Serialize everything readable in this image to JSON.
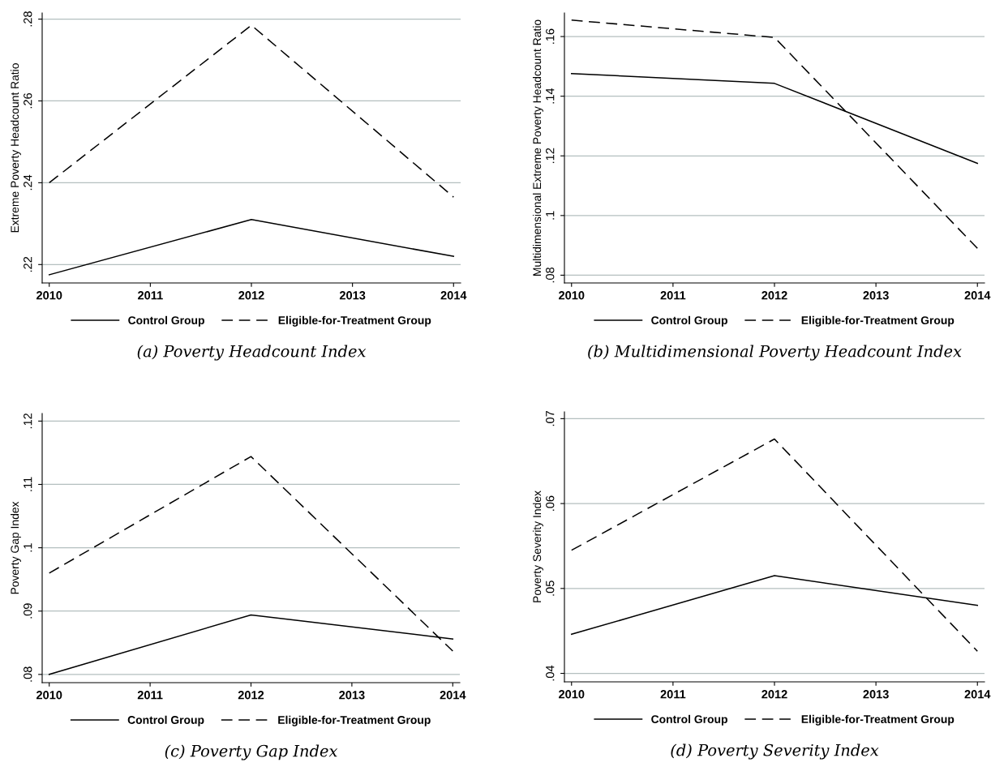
{
  "chart_data": [
    {
      "type": "line",
      "x": [
        2010,
        2012,
        2014
      ],
      "ylabel": "Extreme Poverty Headcount Ratio",
      "annotations": [
        "(a) Poverty Headcount Index"
      ],
      "xlim": [
        2009.93,
        2014.07
      ],
      "xticks": [
        2010,
        2011,
        2012,
        2013,
        2014
      ],
      "ylim": [
        0.2155,
        0.2815
      ],
      "yticks": [
        {
          "value": 0.22,
          "label": ".22"
        },
        {
          "value": 0.24,
          "label": ".24"
        },
        {
          "value": 0.26,
          "label": ".26"
        },
        {
          "value": 0.28,
          "label": ".28"
        }
      ],
      "grid": "y",
      "legend": "bottom",
      "series": [
        {
          "name": "Control Group",
          "color": "#000000",
          "line_style": "solid",
          "values": [
            0.2175,
            0.231,
            0.222
          ]
        },
        {
          "name": "Eligible-for-Treatment Group",
          "color": "#000000",
          "line_style": "dashed",
          "values": [
            0.24,
            0.2785,
            0.2365
          ]
        }
      ]
    },
    {
      "type": "line",
      "x": [
        2010,
        2012,
        2014
      ],
      "ylabel": "Multidimensional Extreme Poverty Headcount Ratio",
      "annotations": [
        "(b) Multidimensional Poverty Headcount Index"
      ],
      "xlim": [
        2009.93,
        2014.07
      ],
      "xticks": [
        2010,
        2011,
        2012,
        2013,
        2014
      ],
      "ylim": [
        0.0774,
        0.1679
      ],
      "yticks": [
        {
          "value": 0.08,
          "label": ".08"
        },
        {
          "value": 0.1,
          "label": ".1"
        },
        {
          "value": 0.12,
          "label": ".12"
        },
        {
          "value": 0.14,
          "label": ".14"
        },
        {
          "value": 0.16,
          "label": ".16"
        }
      ],
      "grid": "y",
      "legend": "bottom",
      "series": [
        {
          "name": "Control Group",
          "color": "#000000",
          "line_style": "solid",
          "values": [
            0.1476,
            0.1443,
            0.1175
          ]
        },
        {
          "name": "Eligible-for-Treatment Group",
          "color": "#000000",
          "line_style": "dashed",
          "values": [
            0.1655,
            0.1597,
            0.089
          ]
        }
      ]
    },
    {
      "type": "line",
      "x": [
        2010,
        2012,
        2014
      ],
      "ylabel": "Poverty Gap Index",
      "annotations": [
        "(c) Poverty Gap Index"
      ],
      "xlim": [
        2009.93,
        2014.07
      ],
      "xticks": [
        2010,
        2011,
        2012,
        2013,
        2014
      ],
      "ylim": [
        0.0787,
        0.1212
      ],
      "yticks": [
        {
          "value": 0.08,
          "label": ".08"
        },
        {
          "value": 0.09,
          "label": ".09"
        },
        {
          "value": 0.1,
          "label": ".1"
        },
        {
          "value": 0.11,
          "label": ".11"
        },
        {
          "value": 0.12,
          "label": ".12"
        }
      ],
      "grid": "y",
      "legend": "bottom",
      "series": [
        {
          "name": "Control Group",
          "color": "#000000",
          "line_style": "solid",
          "values": [
            0.08,
            0.0894,
            0.0856
          ]
        },
        {
          "name": "Eligible-for-Treatment Group",
          "color": "#000000",
          "line_style": "dashed",
          "values": [
            0.096,
            0.1144,
            0.0837
          ]
        }
      ]
    },
    {
      "type": "line",
      "x": [
        2010,
        2012,
        2014
      ],
      "ylabel": "Poverty Severity Index",
      "annotations": [
        "(d) Poverty Severity Index"
      ],
      "xlim": [
        2009.93,
        2014.07
      ],
      "xticks": [
        2010,
        2011,
        2012,
        2013,
        2014
      ],
      "ylim": [
        0.039,
        0.0708
      ],
      "yticks": [
        {
          "value": 0.04,
          "label": ".04"
        },
        {
          "value": 0.05,
          "label": ".05"
        },
        {
          "value": 0.06,
          "label": ".06"
        },
        {
          "value": 0.07,
          "label": ".07"
        }
      ],
      "grid": "y",
      "legend": "bottom",
      "series": [
        {
          "name": "Control Group",
          "color": "#000000",
          "line_style": "solid",
          "values": [
            0.0446,
            0.0515,
            0.048
          ]
        },
        {
          "name": "Eligible-for-Treatment Group",
          "color": "#000000",
          "line_style": "dashed",
          "values": [
            0.0545,
            0.0676,
            0.0426
          ]
        }
      ]
    }
  ]
}
